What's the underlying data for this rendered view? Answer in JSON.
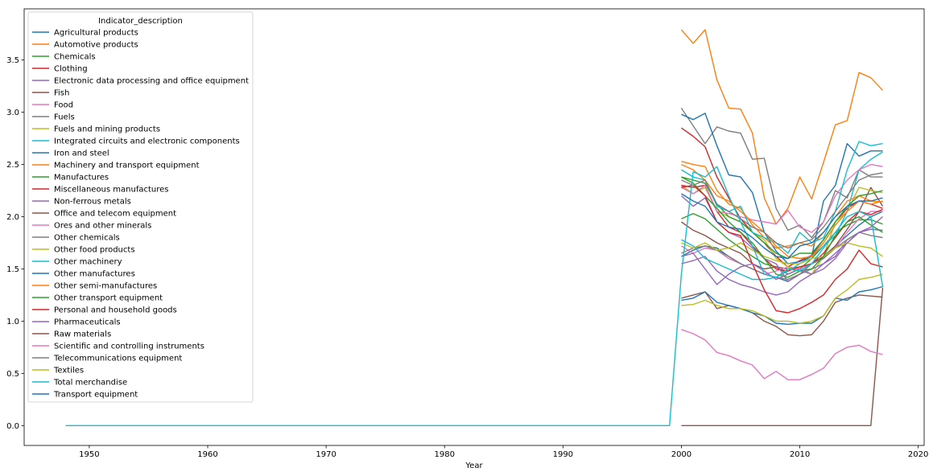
{
  "chart_data": {
    "type": "line",
    "xlabel": "Year",
    "ylabel": "",
    "xlim": [
      1944.5,
      2020.5
    ],
    "ylim": [
      -0.19,
      3.99
    ],
    "xticks": [
      1950,
      1960,
      1970,
      1980,
      1990,
      2000,
      2010,
      2020
    ],
    "yticks": [
      0.0,
      0.5,
      1.0,
      1.5,
      2.0,
      2.5,
      3.0,
      3.5
    ],
    "grid": false,
    "legend": {
      "title": "Indicator_description",
      "placement": "upper-left"
    },
    "x": [
      2000,
      2001,
      2002,
      2003,
      2004,
      2005,
      2006,
      2007,
      2008,
      2009,
      2010,
      2011,
      2012,
      2013,
      2014,
      2015,
      2016,
      2017
    ],
    "series": [
      {
        "name": "Agricultural products",
        "color": "#1f77b4",
        "values": [
          1.62,
          1.68,
          1.72,
          1.7,
          1.62,
          1.55,
          1.5,
          1.45,
          1.42,
          1.38,
          1.45,
          1.55,
          1.6,
          1.72,
          1.82,
          1.92,
          2.0,
          2.05
        ]
      },
      {
        "name": "Automotive products",
        "color": "#ff7f0e",
        "values": [
          3.79,
          3.66,
          3.79,
          3.31,
          3.04,
          3.03,
          2.8,
          2.18,
          1.93,
          2.08,
          2.38,
          2.17,
          2.52,
          2.88,
          2.92,
          3.38,
          3.33,
          3.21
        ]
      },
      {
        "name": "Chemicals",
        "color": "#2ca02c",
        "values": [
          1.98,
          2.03,
          1.98,
          1.88,
          1.78,
          1.7,
          1.62,
          1.55,
          1.52,
          1.45,
          1.5,
          1.6,
          1.72,
          1.85,
          1.92,
          1.97,
          1.97,
          1.93
        ]
      },
      {
        "name": "Clothing",
        "color": "#d62728",
        "values": [
          2.85,
          2.77,
          2.67,
          2.38,
          2.18,
          1.98,
          1.85,
          1.75,
          1.62,
          1.52,
          1.58,
          1.63,
          1.78,
          1.95,
          2.08,
          2.15,
          2.12,
          2.08
        ]
      },
      {
        "name": "Electronic data processing and office equipment",
        "color": "#9467bd",
        "values": [
          1.55,
          1.58,
          1.62,
          1.48,
          1.4,
          1.35,
          1.32,
          1.28,
          1.25,
          1.28,
          1.38,
          1.45,
          1.55,
          1.62,
          1.78,
          1.85,
          1.88,
          1.87
        ]
      },
      {
        "name": "Fish",
        "color": "#8c564b",
        "values": [
          1.95,
          1.87,
          1.82,
          1.75,
          1.7,
          1.65,
          1.55,
          1.5,
          1.52,
          1.5,
          1.52,
          1.55,
          1.62,
          1.72,
          1.88,
          2.05,
          2.28,
          2.1
        ]
      },
      {
        "name": "Food",
        "color": "#e377c2",
        "values": [
          1.72,
          1.65,
          1.7,
          1.68,
          1.6,
          1.55,
          1.5,
          1.45,
          1.48,
          1.52,
          1.5,
          1.55,
          1.6,
          1.7,
          1.85,
          1.98,
          2.05,
          2.05
        ]
      },
      {
        "name": "Fuels",
        "color": "#7f7f7f",
        "values": [
          3.04,
          2.87,
          2.7,
          2.86,
          2.82,
          2.8,
          2.55,
          2.56,
          2.08,
          1.87,
          1.92,
          1.8,
          1.95,
          2.25,
          2.18,
          2.45,
          2.38,
          2.38
        ]
      },
      {
        "name": "Fuels and mining products",
        "color": "#bcbd22",
        "values": [
          2.3,
          2.22,
          2.28,
          2.05,
          2.0,
          1.95,
          1.85,
          1.78,
          1.6,
          1.52,
          1.48,
          1.45,
          1.62,
          1.95,
          2.05,
          2.28,
          2.25,
          2.23
        ]
      },
      {
        "name": "Integrated circuits and electronic components",
        "color": "#17becf",
        "values": [
          1.78,
          1.72,
          1.6,
          1.55,
          1.5,
          1.45,
          1.4,
          1.4,
          1.42,
          1.48,
          1.55,
          1.62,
          1.72,
          1.82,
          2.05,
          2.45,
          2.55,
          2.62
        ]
      },
      {
        "name": "Iron and steel",
        "color": "#1f77b4",
        "values": [
          2.98,
          2.93,
          2.99,
          2.68,
          2.4,
          2.38,
          2.23,
          1.85,
          1.67,
          1.55,
          1.57,
          1.62,
          2.15,
          2.3,
          2.7,
          2.58,
          2.63,
          2.63
        ]
      },
      {
        "name": "Machinery and transport equipment",
        "color": "#ff7f0e",
        "values": [
          2.53,
          2.5,
          2.48,
          2.25,
          2.12,
          2.08,
          1.92,
          1.8,
          1.7,
          1.72,
          1.75,
          1.72,
          1.85,
          2.0,
          2.15,
          2.2,
          2.15,
          2.14
        ]
      },
      {
        "name": "Manufactures",
        "color": "#2ca02c",
        "values": [
          2.38,
          2.35,
          2.32,
          2.12,
          2.0,
          1.95,
          1.85,
          1.75,
          1.65,
          1.6,
          1.65,
          1.65,
          1.78,
          1.95,
          2.1,
          2.2,
          2.22,
          2.25
        ]
      },
      {
        "name": "Miscellaneous manufactures",
        "color": "#d62728",
        "values": [
          2.3,
          2.28,
          2.3,
          2.05,
          1.9,
          1.85,
          1.72,
          1.6,
          1.5,
          1.48,
          1.52,
          1.55,
          1.65,
          1.8,
          1.95,
          2.05,
          2.02,
          2.07
        ]
      },
      {
        "name": "Non-ferrous metals",
        "color": "#9467bd",
        "values": [
          2.2,
          2.1,
          2.18,
          1.95,
          1.85,
          1.8,
          1.7,
          1.6,
          1.55,
          1.38,
          1.45,
          1.5,
          1.55,
          1.65,
          1.75,
          1.85,
          1.88,
          1.87
        ]
      },
      {
        "name": "Office and telecom equipment",
        "color": "#8c564b",
        "values": [
          1.22,
          1.25,
          1.28,
          1.12,
          1.15,
          1.12,
          1.08,
          1.0,
          0.95,
          0.87,
          0.86,
          0.87,
          1.0,
          1.18,
          1.22,
          1.25,
          1.24,
          1.23
        ]
      },
      {
        "name": "Ores and other minerals",
        "color": "#e377c2",
        "values": [
          2.28,
          2.22,
          2.3,
          2.05,
          2.03,
          2.0,
          1.97,
          1.95,
          1.93,
          2.06,
          1.9,
          1.85,
          1.95,
          2.2,
          2.35,
          2.45,
          2.5,
          2.48
        ]
      },
      {
        "name": "Other chemicals",
        "color": "#7f7f7f",
        "values": [
          1.65,
          1.7,
          1.72,
          1.68,
          1.62,
          1.55,
          1.5,
          1.45,
          1.42,
          1.4,
          1.45,
          1.55,
          1.6,
          1.7,
          1.78,
          1.85,
          1.82,
          1.8
        ]
      },
      {
        "name": "Other food products",
        "color": "#bcbd22",
        "values": [
          1.75,
          1.7,
          1.75,
          1.68,
          1.7,
          1.75,
          1.68,
          1.62,
          1.58,
          1.55,
          1.55,
          1.6,
          1.62,
          1.7,
          1.75,
          1.72,
          1.7,
          1.62
        ]
      },
      {
        "name": "Other machinery",
        "color": "#17becf",
        "values": [
          2.45,
          2.38,
          2.35,
          2.1,
          2.05,
          2.1,
          1.85,
          1.8,
          1.75,
          1.65,
          1.85,
          1.75,
          1.8,
          2.05,
          2.45,
          2.72,
          2.68,
          2.7
        ]
      },
      {
        "name": "Other manufactures",
        "color": "#1f77b4",
        "values": [
          1.2,
          1.22,
          1.28,
          1.18,
          1.15,
          1.12,
          1.08,
          1.05,
          0.98,
          0.97,
          0.98,
          0.98,
          1.05,
          1.22,
          1.2,
          1.28,
          1.3,
          1.33
        ]
      },
      {
        "name": "Other semi-manufactures",
        "color": "#ff7f0e",
        "values": [
          2.5,
          2.45,
          2.35,
          2.2,
          2.15,
          2.05,
          1.95,
          1.85,
          1.72,
          1.62,
          1.6,
          1.62,
          1.75,
          1.92,
          2.05,
          2.15,
          2.12,
          2.15
        ]
      },
      {
        "name": "Other transport equipment",
        "color": "#2ca02c",
        "values": [
          2.38,
          2.32,
          2.2,
          2.08,
          1.95,
          1.85,
          1.75,
          1.6,
          1.45,
          1.42,
          1.48,
          1.5,
          1.62,
          1.82,
          1.95,
          2.0,
          1.92,
          1.85
        ]
      },
      {
        "name": "Personal and household goods",
        "color": "#d62728",
        "values": [
          2.28,
          2.3,
          2.2,
          1.95,
          1.85,
          1.82,
          1.55,
          1.3,
          1.1,
          1.08,
          1.12,
          1.18,
          1.25,
          1.4,
          1.5,
          1.68,
          1.55,
          1.52
        ]
      },
      {
        "name": "Pharmaceuticals",
        "color": "#9467bd",
        "values": [
          1.62,
          1.65,
          1.5,
          1.35,
          1.45,
          1.52,
          1.55,
          1.48,
          1.4,
          1.45,
          1.5,
          1.45,
          1.5,
          1.6,
          1.75,
          1.85,
          1.9,
          2.0
        ]
      },
      {
        "name": "Raw materials",
        "color": "#8c564b",
        "values": [
          0.0,
          0.0,
          0.0,
          0.0,
          0.0,
          0.0,
          0.0,
          0.0,
          0.0,
          0.0,
          0.0,
          0.0,
          0.0,
          0.0,
          0.0,
          0.0,
          0.0,
          1.32
        ]
      },
      {
        "name": "Scientific and controlling instruments",
        "color": "#e377c2",
        "values": [
          0.92,
          0.88,
          0.82,
          0.7,
          0.67,
          0.62,
          0.58,
          0.45,
          0.52,
          0.44,
          0.44,
          0.49,
          0.55,
          0.69,
          0.75,
          0.77,
          0.71,
          0.68
        ]
      },
      {
        "name": "Telecommunications equipment",
        "color": "#7f7f7f",
        "values": [
          2.35,
          2.3,
          2.35,
          2.12,
          2.05,
          1.98,
          1.9,
          1.85,
          1.75,
          1.7,
          1.75,
          1.78,
          1.9,
          2.05,
          2.2,
          2.35,
          2.4,
          2.42
        ]
      },
      {
        "name": "Textiles",
        "color": "#bcbd22",
        "values": [
          1.15,
          1.16,
          1.2,
          1.15,
          1.12,
          1.12,
          1.1,
          1.05,
          1.0,
          1.0,
          0.98,
          1.0,
          1.05,
          1.22,
          1.3,
          1.4,
          1.42,
          1.45
        ]
      },
      {
        "name": "Total merchandise",
        "color": "#17becf",
        "series_note": "",
        "x": [
          1948,
          1999,
          2000,
          2001,
          2002,
          2003,
          2004,
          2005,
          2006,
          2007,
          2008,
          2009,
          2010,
          2011,
          2012,
          2013,
          2014,
          2015,
          2016,
          2017
        ],
        "values": [
          0.0,
          0.0,
          1.45,
          2.43,
          2.38,
          2.48,
          2.2,
          1.95,
          1.72,
          1.45,
          1.42,
          1.5,
          1.48,
          1.55,
          1.7,
          1.85,
          2.0,
          2.05,
          2.0,
          1.33
        ]
      },
      {
        "name": "Transport equipment",
        "color": "#1f77b4",
        "values": [
          2.22,
          2.15,
          2.1,
          1.95,
          1.9,
          1.88,
          1.8,
          1.7,
          1.62,
          1.6,
          1.72,
          1.75,
          1.85,
          2.0,
          2.1,
          2.15,
          2.15,
          2.18
        ]
      }
    ]
  }
}
